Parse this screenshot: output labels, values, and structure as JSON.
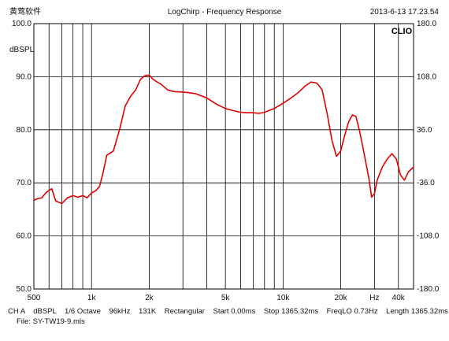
{
  "header": {
    "company": "黄莺软件",
    "title": "LogChirp - Frequency Response",
    "timestamp": "2013-6-13 17.23.54",
    "logo": "CLIO"
  },
  "footer": {
    "line1": "CH A    dBSPL    1/6 Octave    96kHz    131K    Rectangular    Start 0.00ms    Stop 1365.32ms    FreqLO 0.73Hz    Length 1365.32ms",
    "line2": "File: SY-TW19-9.mls"
  },
  "colors": {
    "trace": "#e00000",
    "grid": "#000000",
    "background": "#ffffff"
  },
  "chart_data": {
    "type": "line",
    "title": "LogChirp - Frequency Response",
    "xlabel": "Hz",
    "ylabel": "dBSPL",
    "x_scale": "log",
    "xlim": [
      500,
      48000
    ],
    "ylim": [
      50,
      100
    ],
    "y2lim": [
      -180,
      180
    ],
    "grid": true,
    "x_ticks": [
      {
        "value": 500,
        "label": "500"
      },
      {
        "value": 1000,
        "label": "1k"
      },
      {
        "value": 2000,
        "label": "2k"
      },
      {
        "value": 5000,
        "label": "5k"
      },
      {
        "value": 10000,
        "label": "10k"
      },
      {
        "value": 20000,
        "label": "20k"
      },
      {
        "value": 30000,
        "label": "Hz"
      },
      {
        "value": 40000,
        "label": "40k"
      }
    ],
    "y_ticks": [
      {
        "value": 100,
        "label": "100.0"
      },
      {
        "value": 90,
        "label": "90.0"
      },
      {
        "value": 80,
        "label": "80.0"
      },
      {
        "value": 70,
        "label": "70.0"
      },
      {
        "value": 60,
        "label": "60.0"
      },
      {
        "value": 50,
        "label": "50.0"
      }
    ],
    "y2_ticks": [
      {
        "value": 180,
        "label": "180.0"
      },
      {
        "value": 108,
        "label": "108.0"
      },
      {
        "value": 36,
        "label": "36.0"
      },
      {
        "value": -36,
        "label": "-36.0"
      },
      {
        "value": -108,
        "label": "-108.0"
      },
      {
        "value": -180,
        "label": "-180.0"
      }
    ],
    "series": [
      {
        "x": [
          500,
          520,
          550,
          580,
          620,
          650,
          700,
          750,
          800,
          850,
          900,
          950,
          1000,
          1050,
          1100,
          1150,
          1200,
          1300,
          1400,
          1500,
          1600,
          1700,
          1800,
          1900,
          2000,
          2100,
          2200,
          2300,
          2500,
          2700,
          3000,
          3200,
          3500,
          4000,
          4500,
          5000,
          5500,
          6000,
          6500,
          7000,
          7500,
          8000,
          9000,
          10000,
          11000,
          12000,
          13000,
          14000,
          15000,
          15500,
          16000,
          17000,
          18000,
          19000,
          19500,
          20000,
          21000,
          22000,
          23000,
          24000,
          25000,
          26000,
          27000,
          28000,
          29000,
          30000,
          31000,
          33000,
          35000,
          37000,
          39000,
          41000,
          43000,
          45000,
          48000
        ],
        "y": [
          66.7,
          67.0,
          67.2,
          68.2,
          68.9,
          66.6,
          66.1,
          67.2,
          67.6,
          67.3,
          67.6,
          67.2,
          68.1,
          68.5,
          69.3,
          72.0,
          75.2,
          76.0,
          80.0,
          84.5,
          86.3,
          87.5,
          89.5,
          90.2,
          90.3,
          89.5,
          89.0,
          88.6,
          87.5,
          87.2,
          87.1,
          87.0,
          86.8,
          86.0,
          84.8,
          84.0,
          83.6,
          83.3,
          83.2,
          83.2,
          83.1,
          83.3,
          84.0,
          85.0,
          86.0,
          87.0,
          88.2,
          89.0,
          88.8,
          88.2,
          87.5,
          83.0,
          78.0,
          75.0,
          75.5,
          76.0,
          79.0,
          81.5,
          82.8,
          82.5,
          80.0,
          77.0,
          74.0,
          71.0,
          67.3,
          68.0,
          70.5,
          73.0,
          74.5,
          75.5,
          74.5,
          71.5,
          70.5,
          72.0,
          73.0
        ]
      }
    ]
  }
}
